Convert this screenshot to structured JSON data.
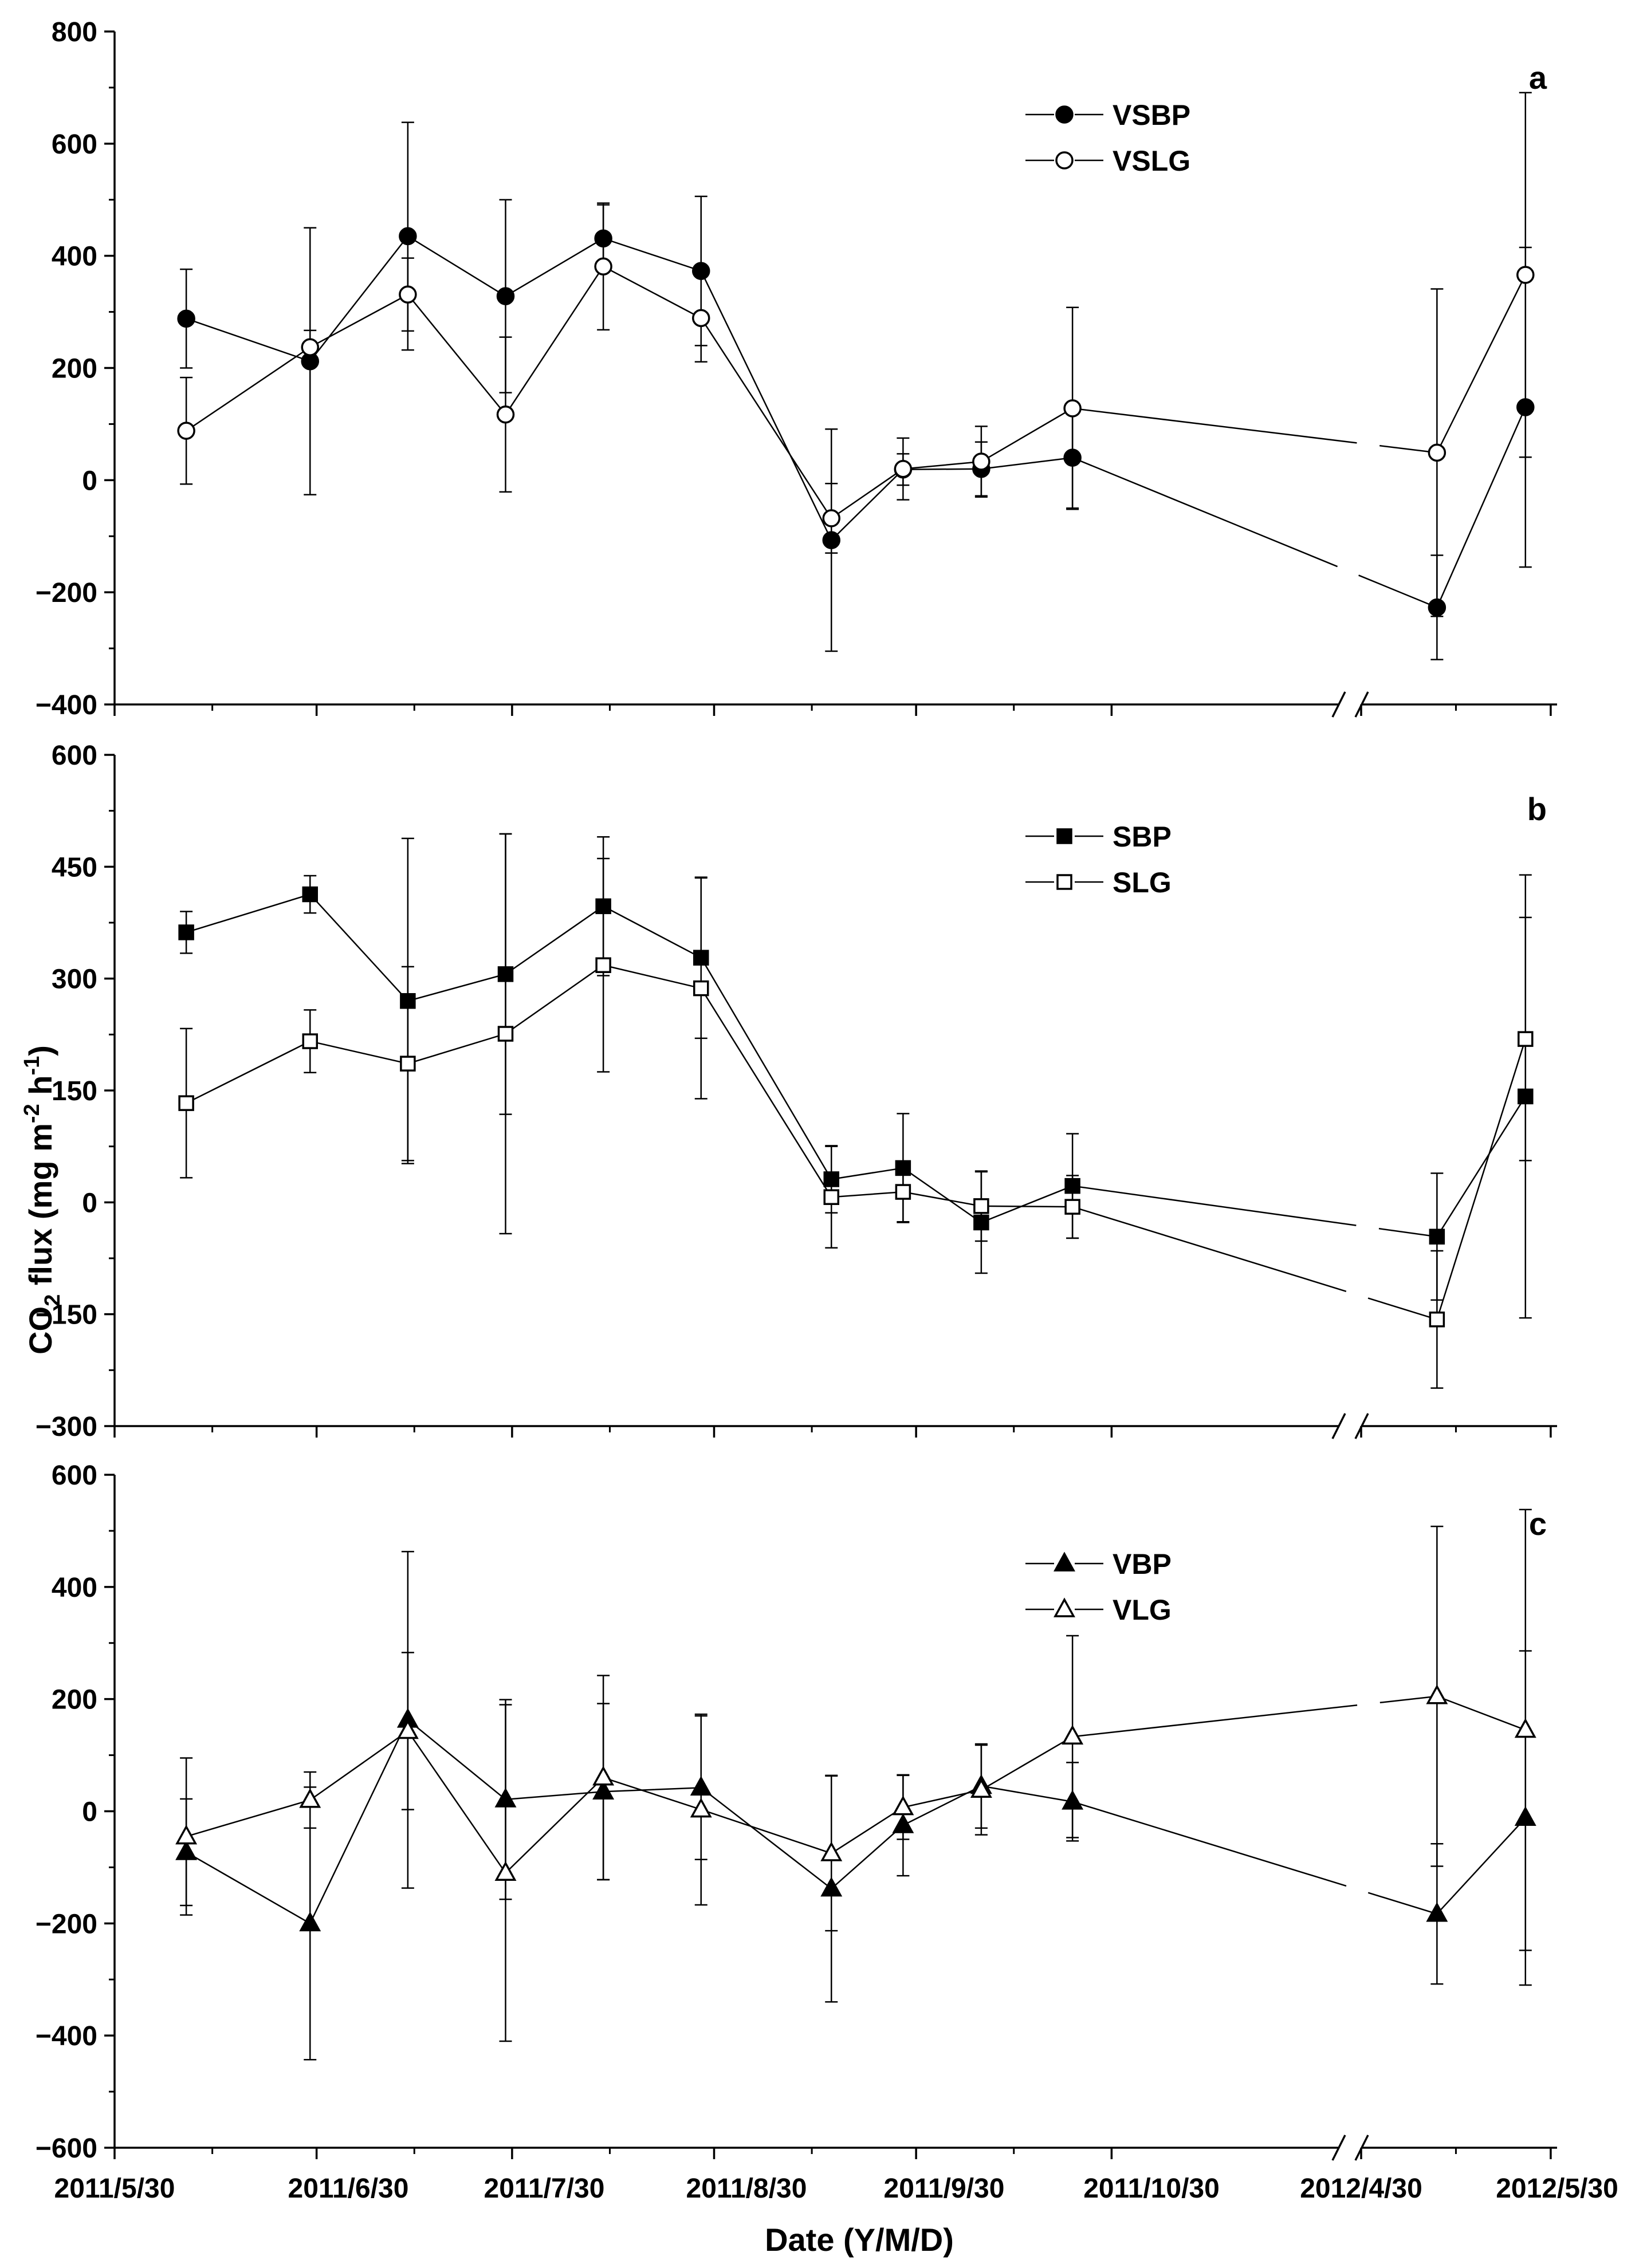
{
  "x_axis": {
    "label": "Date (Y/M/D)",
    "break_after": "2011/10/30",
    "ticks": [
      "2011/5/30",
      "2011/6/30",
      "2011/7/30",
      "2011/8/30",
      "2011/9/30",
      "2011/10/30",
      "2012/4/30",
      "2012/5/30"
    ]
  },
  "y_axis": {
    "label_prefix": "CO",
    "label_sub": "2",
    "label_mid": " flux (mg m",
    "label_sup1": "-2",
    "label_mid2": " h",
    "label_sup2": "-1",
    "label_suffix": ")"
  },
  "chart_data": [
    {
      "panel": "a",
      "type": "line",
      "ylim": [
        -400,
        800
      ],
      "yticks": [
        "800",
        "600",
        "400",
        "200",
        "0",
        "−200",
        "−400"
      ],
      "ytick_values": [
        800,
        600,
        400,
        200,
        0,
        -200,
        -400
      ],
      "dates": [
        "2011/6/10",
        "2011/6/29",
        "2011/7/14",
        "2011/7/29",
        "2011/8/13",
        "2011/8/28",
        "2011/9/17",
        "2011/9/28",
        "2011/10/10",
        "2011/10/24",
        "2012/5/12",
        "2012/5/26"
      ],
      "series": [
        {
          "name": "VSBP",
          "marker": "circle",
          "filled": true,
          "values": [
            288,
            212,
            435,
            328,
            431,
            373,
            -107,
            19,
            20,
            40,
            -227,
            130
          ],
          "errors": [
            88,
            238,
            203,
            172,
            60,
            133,
            198,
            28,
            48,
            90,
            93,
            285
          ]
        },
        {
          "name": "VSLG",
          "marker": "circle",
          "filled": false,
          "values": [
            88,
            237,
            331,
            117,
            381,
            289,
            -68,
            20,
            33,
            128,
            49,
            366
          ],
          "errors": [
            95,
            30,
            65,
            138,
            113,
            78,
            62,
            55,
            63,
            180,
            292,
            325
          ]
        }
      ]
    },
    {
      "panel": "b",
      "type": "line",
      "ylim": [
        -300,
        600
      ],
      "yticks": [
        "600",
        "450",
        "300",
        "150",
        "0",
        "−150",
        "−300"
      ],
      "ytick_values": [
        600,
        450,
        300,
        150,
        0,
        -150,
        -300
      ],
      "dates": [
        "2011/6/10",
        "2011/6/29",
        "2011/7/14",
        "2011/7/29",
        "2011/8/13",
        "2011/8/28",
        "2011/9/17",
        "2011/9/28",
        "2011/10/10",
        "2011/10/24",
        "2012/5/12",
        "2012/5/26"
      ],
      "series": [
        {
          "name": "SBP",
          "marker": "square",
          "filled": true,
          "values": [
            362,
            413,
            270,
            306,
            397,
            328,
            31,
            46,
            -27,
            22,
            -46,
            142
          ],
          "errors": [
            28,
            25,
            218,
            188,
            93,
            108,
            45,
            73,
            68,
            70,
            85,
            297
          ]
        },
        {
          "name": "SLG",
          "marker": "square",
          "filled": false,
          "values": [
            133,
            216,
            186,
            226,
            318,
            287,
            7,
            14,
            -5,
            -6,
            -157,
            219
          ],
          "errors": [
            100,
            42,
            130,
            268,
            143,
            148,
            68,
            40,
            47,
            42,
            92,
            163
          ]
        }
      ]
    },
    {
      "panel": "c",
      "type": "line",
      "ylim": [
        -600,
        600
      ],
      "yticks": [
        "600",
        "400",
        "200",
        "0",
        "−200",
        "−400",
        "−600"
      ],
      "ytick_values": [
        600,
        400,
        200,
        0,
        -200,
        -400,
        -600
      ],
      "dates": [
        "2011/6/10",
        "2011/6/29",
        "2011/7/14",
        "2011/7/29",
        "2011/8/13",
        "2011/8/28",
        "2011/9/17",
        "2011/9/28",
        "2011/10/10",
        "2011/10/24",
        "2012/5/12",
        "2012/5/26"
      ],
      "series": [
        {
          "name": "VBP",
          "marker": "triangle",
          "filled": true,
          "values": [
            -73,
            -200,
            163,
            21,
            35,
            42,
            -138,
            -25,
            45,
            17,
            -183,
            -12
          ],
          "errors": [
            95,
            243,
            300,
            178,
            157,
            128,
            202,
            90,
            75,
            70,
            125,
            298
          ]
        },
        {
          "name": "VLG",
          "marker": "triangle",
          "filled": false,
          "values": [
            -45,
            20,
            143,
            -110,
            60,
            3,
            -75,
            7,
            38,
            133,
            205,
            145
          ],
          "errors": [
            140,
            50,
            140,
            300,
            182,
            170,
            138,
            57,
            80,
            180,
            303,
            393
          ]
        }
      ]
    }
  ]
}
